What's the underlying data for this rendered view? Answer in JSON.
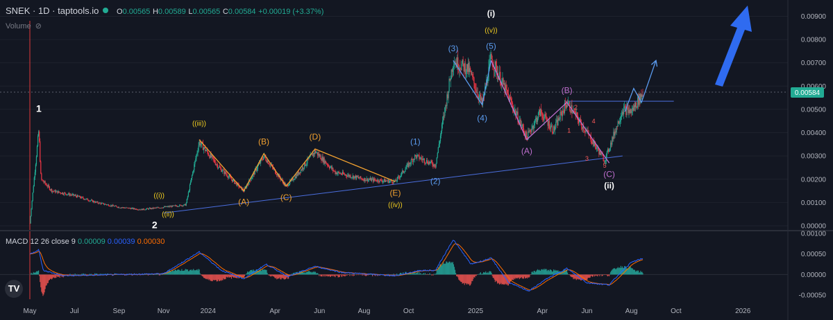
{
  "header": {
    "symbol": "SNEK · 1D · taptools.io",
    "open_label": "O",
    "open": "0.00565",
    "high_label": "H",
    "high": "0.00589",
    "low_label": "L",
    "low": "0.00565",
    "close_label": "C",
    "close": "0.00584",
    "change": "+0.00019 (+3.37%)"
  },
  "volume_label": "Volume",
  "macd_header": {
    "label": "MACD 12 26 close 9",
    "hist": "0.00009",
    "macd": "0.00039",
    "signal": "0.00030"
  },
  "logo_text": "TV",
  "colors": {
    "background": "#131722",
    "up": "#22ab94",
    "down": "#f23645",
    "trendline": "#4b6fe0",
    "orange": "#f0a030",
    "yellow": "#f5d020",
    "blue_wave": "#5b9cf0",
    "purple_wave": "#c070d0",
    "red_wave": "#ff5a5a",
    "macd_line": "#2962ff",
    "signal_line": "#ff6d00",
    "price_badge": "#22ab94",
    "arrow": "#2f6bf0"
  },
  "chart_data": {
    "type": "candlestick",
    "price_axis": {
      "ylim": [
        0,
        0.0094
      ],
      "ticks": [
        "0.00000",
        "0.00100",
        "0.00200",
        "0.00300",
        "0.00400",
        "0.00500",
        "0.00600",
        "0.00700",
        "0.00800",
        "0.00900"
      ],
      "last_price": "0.00584"
    },
    "macd_axis": {
      "ylim": [
        -0.0006,
        0.001
      ],
      "ticks": [
        "0.00100",
        "0.00050",
        "0.00000",
        "-0.00050"
      ]
    },
    "time_axis": {
      "labels": [
        {
          "m": 0,
          "text": "May"
        },
        {
          "m": 2,
          "text": "Jul"
        },
        {
          "m": 4,
          "text": "Sep"
        },
        {
          "m": 6,
          "text": "Nov"
        },
        {
          "m": 8,
          "text": "2024"
        },
        {
          "m": 11,
          "text": "Apr"
        },
        {
          "m": 13,
          "text": "Jun"
        },
        {
          "m": 15,
          "text": "Aug"
        },
        {
          "m": 17,
          "text": "Oct"
        },
        {
          "m": 20,
          "text": "2025"
        },
        {
          "m": 23,
          "text": "Apr"
        },
        {
          "m": 25,
          "text": "Jun"
        },
        {
          "m": 27,
          "text": "Aug"
        },
        {
          "m": 29,
          "text": "Oct"
        },
        {
          "m": 32,
          "text": "2026"
        }
      ]
    },
    "price_path": [
      [
        0.0,
        0.0001
      ],
      [
        0.4,
        0.0041
      ],
      [
        0.5,
        0.002
      ],
      [
        1.0,
        0.0015
      ],
      [
        2.0,
        0.0013
      ],
      [
        3.0,
        0.001
      ],
      [
        4.0,
        0.0008
      ],
      [
        5.0,
        0.0007
      ],
      [
        6.0,
        0.0008
      ],
      [
        7.0,
        0.0009
      ],
      [
        7.6,
        0.0036
      ],
      [
        8.5,
        0.0025
      ],
      [
        9.6,
        0.0015
      ],
      [
        10.5,
        0.003
      ],
      [
        11.5,
        0.0017
      ],
      [
        12.0,
        0.0022
      ],
      [
        12.8,
        0.0032
      ],
      [
        13.7,
        0.0023
      ],
      [
        15.0,
        0.002
      ],
      [
        16.4,
        0.0019
      ],
      [
        17.3,
        0.003
      ],
      [
        18.2,
        0.0026
      ],
      [
        19.0,
        0.0071
      ],
      [
        19.7,
        0.0067
      ],
      [
        20.3,
        0.0052
      ],
      [
        20.7,
        0.0072
      ],
      [
        21.5,
        0.0055
      ],
      [
        22.3,
        0.0038
      ],
      [
        22.9,
        0.0049
      ],
      [
        23.5,
        0.0041
      ],
      [
        24.1,
        0.0053
      ],
      [
        25.0,
        0.004
      ],
      [
        25.8,
        0.0028
      ],
      [
        26.6,
        0.005
      ],
      [
        27.0,
        0.0049
      ],
      [
        27.5,
        0.0057
      ]
    ],
    "macd_path": [
      [
        0.0,
        0.0005
      ],
      [
        0.4,
        0.0006
      ],
      [
        0.6,
        0.0001
      ],
      [
        1.5,
        -3e-05
      ],
      [
        4.0,
        0.0
      ],
      [
        6.0,
        2e-05
      ],
      [
        7.6,
        0.00055
      ],
      [
        8.6,
        0.0001
      ],
      [
        9.6,
        -0.0001
      ],
      [
        10.6,
        0.00025
      ],
      [
        11.6,
        -5e-05
      ],
      [
        12.8,
        0.0002
      ],
      [
        14.0,
        5e-05
      ],
      [
        16.4,
        -3e-05
      ],
      [
        17.5,
        0.0001
      ],
      [
        18.2,
        0.0001
      ],
      [
        19.0,
        0.00085
      ],
      [
        19.8,
        0.00025
      ],
      [
        20.7,
        0.0004
      ],
      [
        21.5,
        -0.0002
      ],
      [
        22.4,
        -0.0004
      ],
      [
        23.2,
        -0.0001
      ],
      [
        24.1,
        0.00015
      ],
      [
        25.0,
        -0.0002
      ],
      [
        26.0,
        -0.00025
      ],
      [
        26.6,
        0.0001
      ],
      [
        27.0,
        0.0003
      ],
      [
        27.5,
        0.00039
      ]
    ],
    "trendlines": [
      {
        "color": "trendline",
        "from": [
          6.0,
          0.00055
        ],
        "to": [
          26.6,
          0.003
        ]
      },
      {
        "color": "trendline",
        "from": [
          24.0,
          0.00535
        ],
        "to": [
          28.9,
          0.00535
        ]
      }
    ],
    "wave_lines": [
      {
        "color": "orange",
        "points": [
          [
            7.6,
            0.0037
          ],
          [
            9.6,
            0.0015
          ],
          [
            10.5,
            0.0031
          ],
          [
            11.5,
            0.0017
          ],
          [
            12.8,
            0.0033
          ],
          [
            16.4,
            0.0019
          ]
        ]
      },
      {
        "color": "blue_wave",
        "points": [
          [
            19.0,
            0.0071
          ],
          [
            20.3,
            0.0052
          ],
          [
            20.7,
            0.0071
          ]
        ]
      },
      {
        "color": "purple_wave",
        "points": [
          [
            20.7,
            0.0071
          ],
          [
            22.3,
            0.0037
          ],
          [
            24.1,
            0.0053
          ],
          [
            26.0,
            0.0027
          ]
        ]
      },
      {
        "color": "blue_wave",
        "points": [
          [
            26.7,
            0.0049
          ],
          [
            27.1,
            0.0059
          ],
          [
            27.45,
            0.0053
          ],
          [
            28.1,
            0.0071
          ]
        ],
        "arrow": true
      }
    ],
    "labels": [
      {
        "text": "1",
        "m": 0.4,
        "y": 0.0049,
        "color": "#ffffff",
        "size": 14,
        "bold": true
      },
      {
        "text": "2",
        "m": 5.6,
        "y": -0.0001,
        "color": "#ffffff",
        "size": 14,
        "bold": true
      },
      {
        "text": "((i))",
        "m": 5.8,
        "y": 0.0012,
        "color": "yellow",
        "size": 10
      },
      {
        "text": "((ii))",
        "m": 6.2,
        "y": 0.0004,
        "color": "yellow",
        "size": 10
      },
      {
        "text": "((iii))",
        "m": 7.6,
        "y": 0.0043,
        "color": "yellow",
        "size": 10
      },
      {
        "text": "(A)",
        "m": 9.6,
        "y": 0.0009,
        "color": "orange",
        "size": 12
      },
      {
        "text": "(B)",
        "m": 10.5,
        "y": 0.0035,
        "color": "orange",
        "size": 12
      },
      {
        "text": "(C)",
        "m": 11.5,
        "y": 0.0011,
        "color": "orange",
        "size": 12
      },
      {
        "text": "(D)",
        "m": 12.8,
        "y": 0.0037,
        "color": "orange",
        "size": 12
      },
      {
        "text": "(E)",
        "m": 16.4,
        "y": 0.0013,
        "color": "orange",
        "size": 12
      },
      {
        "text": "((iv))",
        "m": 16.4,
        "y": 0.0008,
        "color": "yellow",
        "size": 10
      },
      {
        "text": "(1)",
        "m": 17.3,
        "y": 0.0035,
        "color": "blue_wave",
        "size": 12
      },
      {
        "text": "(2)",
        "m": 18.2,
        "y": 0.0018,
        "color": "blue_wave",
        "size": 12
      },
      {
        "text": "(3)",
        "m": 19.0,
        "y": 0.0075,
        "color": "blue_wave",
        "size": 12
      },
      {
        "text": "(4)",
        "m": 20.3,
        "y": 0.0045,
        "color": "blue_wave",
        "size": 12
      },
      {
        "text": "(5)",
        "m": 20.7,
        "y": 0.0076,
        "color": "blue_wave",
        "size": 12
      },
      {
        "text": "((v))",
        "m": 20.7,
        "y": 0.0083,
        "color": "yellow",
        "size": 10
      },
      {
        "text": "(i)",
        "m": 20.7,
        "y": 0.009,
        "color": "#ffffff",
        "size": 12,
        "bold": true
      },
      {
        "text": "(A)",
        "m": 22.3,
        "y": 0.0031,
        "color": "purple_wave",
        "size": 12
      },
      {
        "text": "(B)",
        "m": 24.1,
        "y": 0.0057,
        "color": "purple_wave",
        "size": 12
      },
      {
        "text": "(C)",
        "m": 26.0,
        "y": 0.0021,
        "color": "purple_wave",
        "size": 12
      },
      {
        "text": "(ii)",
        "m": 26.0,
        "y": 0.0016,
        "color": "#ffffff",
        "size": 12,
        "bold": true
      },
      {
        "text": "1",
        "m": 24.2,
        "y": 0.004,
        "color": "red_wave",
        "size": 9
      },
      {
        "text": "2",
        "m": 24.5,
        "y": 0.005,
        "color": "red_wave",
        "size": 9
      },
      {
        "text": "3",
        "m": 25.0,
        "y": 0.0028,
        "color": "red_wave",
        "size": 9
      },
      {
        "text": "4",
        "m": 25.3,
        "y": 0.0044,
        "color": "red_wave",
        "size": 9
      },
      {
        "text": "5",
        "m": 25.8,
        "y": 0.0025,
        "color": "red_wave",
        "size": 9
      }
    ]
  }
}
